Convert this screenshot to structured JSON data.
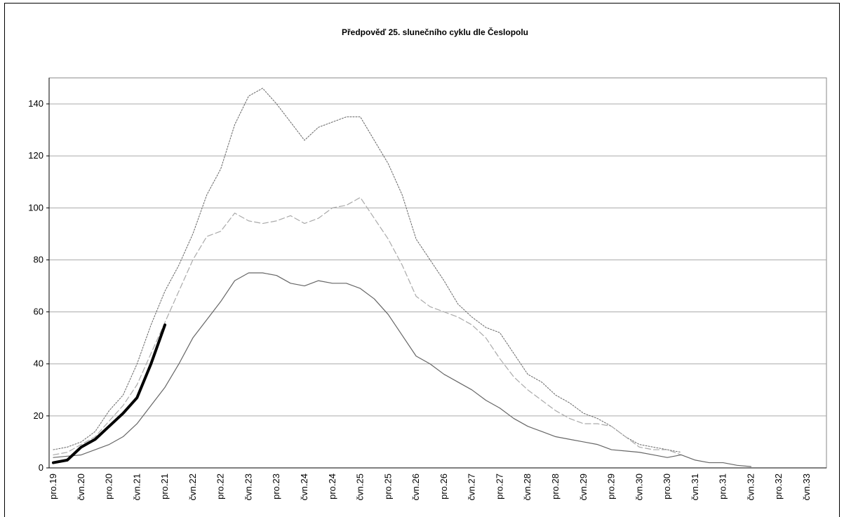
{
  "chart_data": {
    "type": "line",
    "title": "Předpověď 25. slunečního cyklu dle Česlopolu",
    "categories": [
      "pro.19",
      null,
      "čvn.20",
      null,
      "pro.20",
      null,
      "čvn.21",
      null,
      "pro.21",
      null,
      "čvn.22",
      null,
      "pro.22",
      null,
      "čvn.23",
      null,
      "pro.23",
      null,
      "čvn.24",
      null,
      "pro.24",
      null,
      "čvn.25",
      null,
      "pro.25",
      null,
      "čvn.26",
      null,
      "pro.26",
      null,
      "čvn.27",
      null,
      "pro.27",
      null,
      "čvn.28",
      null,
      "pro.28",
      null,
      "čvn.29",
      null,
      "pro.29",
      null,
      "čvn.30",
      null,
      "pro.30",
      null,
      "čvn.31",
      null,
      "pro.31",
      null,
      "čvn.32",
      null,
      "pro.32",
      null,
      "čvn.33"
    ],
    "series": [
      {
        "color": "#666666",
        "style": "dotted",
        "width": 1,
        "values": [
          7,
          8,
          10,
          14,
          22,
          28,
          40,
          55,
          68,
          78,
          90,
          105,
          115,
          132,
          143,
          146,
          140,
          133,
          126,
          131,
          133,
          135,
          135,
          126,
          117,
          105,
          88,
          80,
          72,
          63,
          58,
          54,
          52,
          44,
          36,
          33,
          28,
          25,
          21,
          19,
          16,
          12,
          9,
          8,
          7,
          6,
          null,
          null,
          null,
          null,
          null,
          null,
          null,
          null,
          null
        ]
      },
      {
        "color": "#aaaaaa",
        "style": "dashed",
        "width": 1.2,
        "values": [
          5,
          6,
          9,
          12,
          18,
          24,
          32,
          44,
          56,
          68,
          80,
          89,
          91,
          98,
          95,
          94,
          95,
          97,
          94,
          96,
          100,
          101,
          104,
          96,
          88,
          78,
          66,
          62,
          60,
          58,
          55,
          50,
          42,
          35,
          30,
          26,
          22,
          19,
          17,
          17,
          16,
          12,
          8,
          7,
          7,
          5,
          null,
          null,
          null,
          null,
          null,
          null,
          null,
          null,
          null
        ]
      },
      {
        "color": "#666666",
        "style": "solid",
        "width": 1.2,
        "values": [
          4,
          4.5,
          5,
          7,
          9,
          12,
          17,
          24,
          31,
          40,
          50,
          57,
          64,
          72,
          75,
          75,
          74,
          71,
          70,
          72,
          71,
          71,
          69,
          65,
          59,
          51,
          43,
          40,
          36,
          33,
          30,
          26,
          23,
          19,
          16,
          14,
          12,
          11,
          10,
          9,
          7,
          6.5,
          6,
          5,
          4,
          5,
          3,
          2,
          2,
          1,
          0.5,
          null,
          null,
          null,
          null
        ]
      },
      {
        "color": "#000000",
        "style": "solid",
        "width": 4,
        "values": [
          2,
          3,
          8,
          11,
          16,
          21,
          27,
          40,
          55,
          null,
          null,
          null,
          null,
          null,
          null,
          null,
          null,
          null,
          null,
          null,
          null,
          null,
          null,
          null,
          null,
          null,
          null,
          null,
          null,
          null,
          null,
          null,
          null,
          null,
          null,
          null,
          null,
          null,
          null,
          null,
          null,
          null,
          null,
          null,
          null,
          null,
          null,
          null,
          null,
          null,
          null,
          null,
          null,
          null,
          null
        ]
      }
    ],
    "ylim": [
      0,
      150
    ],
    "yticks": [
      0,
      20,
      40,
      60,
      80,
      100,
      120,
      140
    ],
    "grid": true
  }
}
